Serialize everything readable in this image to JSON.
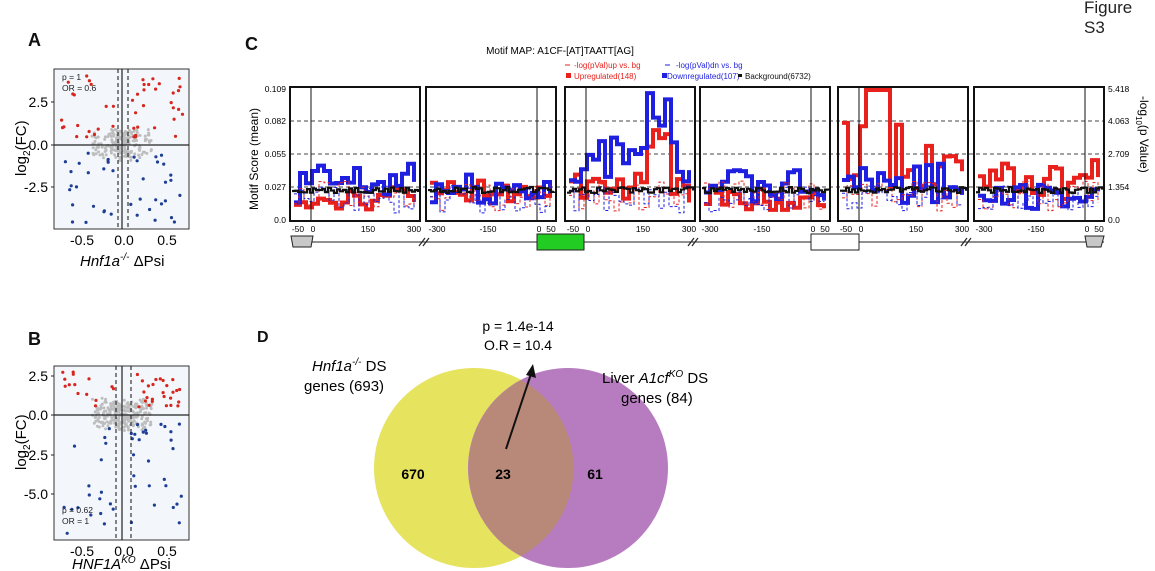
{
  "figure_title": "Figure S3",
  "panels": {
    "A": {
      "label": "A",
      "stat_p": "p = 1",
      "stat_or": "OR = 0.6",
      "ylabel_main": "log",
      "ylabel_sub": "2",
      "ylabel_rest": "(FC)",
      "yticks": [
        "2.5",
        "0.0",
        "-2.5"
      ],
      "xticks": [
        "-0.5",
        "0.0",
        "0.5"
      ],
      "xlabel_gene": "Hnf1a",
      "xlabel_sup": "-/-",
      "xlabel_rest": " ΔPsi"
    },
    "B": {
      "label": "B",
      "stat_p": "p = 0.62",
      "stat_or": "OR = 1",
      "ylabel_main": "log",
      "ylabel_sub": "2",
      "ylabel_rest": "(FC)",
      "yticks": [
        "2.5",
        "0.0",
        "-2.5",
        "-5.0"
      ],
      "xticks": [
        "-0.5",
        "0.0",
        "0.5"
      ],
      "xlabel_gene": "HNF1A",
      "xlabel_sup": "KO",
      "xlabel_rest": " ΔPsi"
    },
    "C": {
      "label": "C",
      "title": "Motif MAP: A1CF-[AT]TAATT[AG]",
      "legend": {
        "up_pval": "-log(pVal)up vs. bg",
        "dn_pval": "-log(pVal)dn vs. bg",
        "up": "Upregulated(148)",
        "down": "Downregulated(107)",
        "bg": "Background(6732)"
      },
      "ylabel_left": "Motif Score (mean)",
      "ylabel_right_a": "-log",
      "ylabel_right_sub": "10",
      "ylabel_right_b": "(p Value)",
      "yticks_left": [
        "0.109",
        "0.082",
        "0.055",
        "0.027",
        "0.0"
      ],
      "yticks_right": [
        "5.418",
        "4.063",
        "2.709",
        "1.354",
        "0.0"
      ],
      "xtick_groups": [
        [
          "-50",
          "0",
          "150",
          "300"
        ],
        [
          "-300",
          "-150",
          "0",
          "50"
        ],
        [
          "-50",
          "0",
          "150",
          "300"
        ],
        [
          "-300",
          "-150",
          "0",
          "50"
        ],
        [
          "-50",
          "0",
          "150",
          "300"
        ],
        [
          "-300",
          "-150",
          "0",
          "50"
        ]
      ]
    },
    "D": {
      "label": "D",
      "stat_p": "p = 1.4e-14",
      "stat_or": "O.R = 10.4",
      "left_gene": "Hnf1a",
      "left_sup": "-/-",
      "left_suffix": " DS",
      "left_line2": "genes (693)",
      "right_prefix": "Liver ",
      "right_gene": "A1cf",
      "right_sup": "KO",
      "right_suffix": " DS",
      "right_line2": "genes (84)",
      "only_left": "670",
      "overlap": "23",
      "only_right": "61"
    }
  },
  "colors": {
    "up": "#e8211c",
    "down": "#1f1fe0",
    "background": "#111111",
    "grey_points": "#bdbdbd",
    "up_points": "#d7261e",
    "down_points": "#1f3f95",
    "venn_left": "#e6e35f",
    "venn_right": "#b77cc0",
    "venn_overlap": "#b88978",
    "exon_green": "#22cc22",
    "exon_grey": "#c8c8c8"
  }
}
